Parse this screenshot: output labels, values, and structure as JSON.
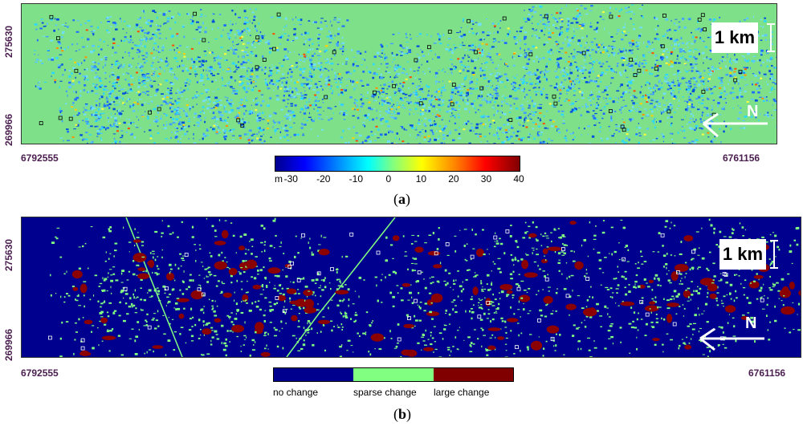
{
  "panel_a": {
    "y_labels": [
      "275630",
      "269966"
    ],
    "x_left": "6792555",
    "x_right": "6761156",
    "scale_bar": "1 km",
    "north_label": "N",
    "colorbar": {
      "unit": "m",
      "ticks": [
        "-30",
        "-20",
        "-10",
        "0",
        "10",
        "20",
        "30",
        "40"
      ],
      "min": -35,
      "max": 40
    },
    "caption_open": "(",
    "caption_letter": "a",
    "caption_close": ")"
  },
  "panel_b": {
    "y_labels": [
      "275630",
      "269966"
    ],
    "x_left": "6792555",
    "x_right": "6761156",
    "scale_bar": "1 km",
    "north_label": "N",
    "legend": [
      {
        "label": "no change",
        "color": "#00008f"
      },
      {
        "label": "sparse change",
        "color": "#80ff80"
      },
      {
        "label": "large change",
        "color": "#800000"
      }
    ],
    "caption_open": "(",
    "caption_letter": "b",
    "caption_close": ")"
  }
}
